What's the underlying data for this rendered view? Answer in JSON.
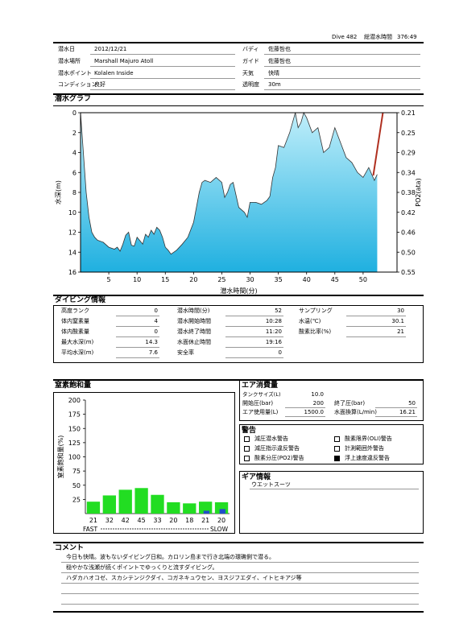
{
  "header": {
    "dive_no": "Dive 482",
    "total_time_label": "総潜水時間",
    "total_time_value": "376:49"
  },
  "info": {
    "date_label": "潜水日",
    "date_value": "2012/12/21",
    "place_label": "潜水場所",
    "place_value": "Marshall Majuro Atoll",
    "point_label": "潜水ポイント",
    "point_value": "Kolalen Inside",
    "condition_label": "コンディション",
    "condition_value": "良好",
    "buddy_label": "バディ",
    "buddy_value": "佐藤哲也",
    "guide_label": "ガイド",
    "guide_value": "佐藤哲也",
    "weather_label": "天気",
    "weather_value": "快晴",
    "visibility_label": "透明度",
    "visibility_value": "30m"
  },
  "dive_graph": {
    "title": "潜水グラフ"
  },
  "dive_info": {
    "title": "ダイビング情報",
    "col1": [
      {
        "label": "高度ランク",
        "value": "0"
      },
      {
        "label": "体内窒素量",
        "value": "4"
      },
      {
        "label": "体内酸素量",
        "value": "0"
      },
      {
        "label": "最大水深(m)",
        "value": "14.3"
      },
      {
        "label": "平均水深(m)",
        "value": "7.6"
      }
    ],
    "col2": [
      {
        "label": "潜水時間(分)",
        "value": "52"
      },
      {
        "label": "潜水開始時間",
        "value": "10:28"
      },
      {
        "label": "潜水終了時間",
        "value": "11:20"
      },
      {
        "label": "水面休止時間",
        "value": "19:16"
      },
      {
        "label": "安全率",
        "value": "0"
      }
    ],
    "col3": [
      {
        "label": "サンプリング",
        "value": "30"
      },
      {
        "label": "水温(℃)",
        "value": "30.1"
      },
      {
        "label": "酸素比率(%)",
        "value": "21"
      }
    ]
  },
  "nitrogen": {
    "title": "窒素飽和量"
  },
  "air": {
    "title": "エア消費量",
    "tank_label": "タンクサイズ(L)",
    "tank_value": "10.0",
    "start_label": "開始圧(bar)",
    "start_value": "200",
    "end_label": "終了圧(bar)",
    "end_value": "50",
    "used_label": "エア使用量(L)",
    "used_value": "1500.0",
    "surface_label": "水面換算(L/min)",
    "surface_value": "16.21"
  },
  "warnings": {
    "title": "警告",
    "items": [
      {
        "label": "減圧潜水警告",
        "checked": false
      },
      {
        "label": "酸素限界(OLI)警告",
        "checked": false
      },
      {
        "label": "減圧指示違反警告",
        "checked": false
      },
      {
        "label": "計測範囲外警告",
        "checked": false
      },
      {
        "label": "酸素分圧(PO2)警告",
        "checked": false
      },
      {
        "label": "浮上速度違反警告",
        "checked": true
      }
    ]
  },
  "gear": {
    "title": "ギア情報",
    "text": "ウエットスーツ"
  },
  "comment": {
    "title": "コメント",
    "lines": [
      "今日も快晴。波もないダイビング日和。カロリン島まで行き北端の環礁側で潜る。",
      "穏やかな浅瀬が続くポイントでゆっくりと流すダイビング。",
      "ハダカハオコゼ、スカシテンジクダイ、コガネキュウセン、ヨスジフエダイ、イトヒキアジ等"
    ]
  },
  "colors": {
    "profile_top": "#bfeefa",
    "profile_bottom": "#1fb0e0",
    "profile_line": "#333333",
    "po2_line": "#b03020",
    "bar_green": "#22dd22",
    "bar_blue": "#1f4fc8"
  },
  "chart_data": [
    {
      "type": "area",
      "xlabel": "潜水時間(分)",
      "ylabel": "水深(m)",
      "y2label": "PO2(ata)",
      "xlim": [
        0,
        56
      ],
      "ylim": [
        16,
        0
      ],
      "x_ticks": [
        "5",
        "10",
        "15",
        "20",
        "25",
        "30",
        "35",
        "40",
        "45",
        "50"
      ],
      "y_ticks": [
        "0",
        "2",
        "4",
        "6",
        "8",
        "10",
        "12",
        "14",
        "16"
      ],
      "y2_ticks": [
        "0.21",
        "0.25",
        "0.29",
        "0.34",
        "0.38",
        "0.42",
        "0.46",
        "0.50",
        "0.55"
      ],
      "grid": false,
      "series": [
        {
          "x": [
            0,
            0.5,
            1,
            1.5,
            2,
            2.5,
            3,
            4,
            5,
            6,
            6.5,
            7,
            7.5,
            8,
            8.5,
            9,
            9.5,
            10,
            11,
            11.5,
            12,
            12.5,
            13,
            13.5,
            14,
            14.5,
            15,
            15.5,
            16,
            16.5,
            17,
            18,
            19,
            20,
            20.5,
            21,
            21.5,
            22,
            23,
            24,
            25,
            25.5,
            26,
            26.5,
            27,
            28,
            29,
            29.5,
            30,
            31,
            32,
            33,
            33.5,
            34,
            34.5,
            35,
            36,
            37,
            38,
            38.5,
            39,
            39.5,
            40,
            41,
            42,
            43,
            44,
            45,
            46,
            47,
            48,
            49,
            50,
            51,
            52,
            52.5
          ],
          "y": [
            0,
            4,
            8,
            10.5,
            12,
            12.5,
            12.8,
            13,
            13.5,
            13.7,
            13.5,
            13.9,
            13.2,
            12.3,
            12,
            13.3,
            13.4,
            12.5,
            13.2,
            12.2,
            12.5,
            11.8,
            12.2,
            11.5,
            11.8,
            12.5,
            13.5,
            13.8,
            14.2,
            14,
            13.8,
            13.2,
            12.5,
            11,
            9.5,
            8,
            7,
            6.8,
            7,
            6.5,
            7,
            8.5,
            8,
            7.2,
            7,
            9.5,
            10,
            10.5,
            9,
            9,
            9.2,
            8.8,
            8.4,
            6.5,
            5.5,
            3.3,
            3.5,
            2,
            0,
            1.5,
            1,
            0,
            0.5,
            2,
            1.5,
            4,
            3.5,
            1.5,
            3,
            4.5,
            5,
            6,
            6.5,
            5.5,
            6.8,
            6.2
          ]
        }
      ]
    },
    {
      "type": "bar",
      "ylabel": "窒素飽和量(%)",
      "ylim": [
        0,
        200
      ],
      "y_ticks": [
        "25",
        "50",
        "75",
        "100",
        "125",
        "150",
        "175",
        "200"
      ],
      "categories": [
        "21",
        "32",
        "42",
        "45",
        "33",
        "20",
        "18",
        "21",
        "20"
      ],
      "values": [
        21,
        32,
        42,
        45,
        33,
        20,
        18,
        21,
        20
      ],
      "blue_values": [
        0,
        0,
        0,
        0,
        0,
        0,
        0,
        5,
        8
      ],
      "axis_left_label": "FAST",
      "axis_right_label": "SLOW"
    }
  ]
}
